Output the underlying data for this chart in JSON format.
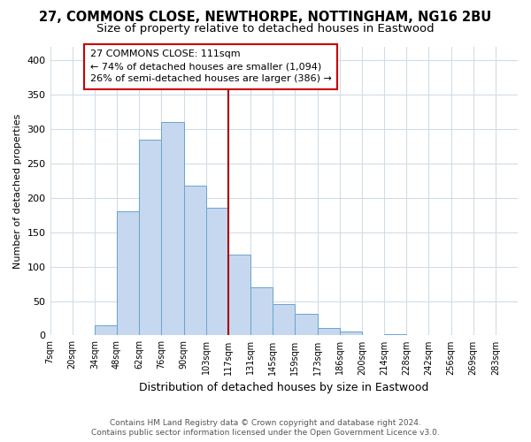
{
  "title": "27, COMMONS CLOSE, NEWTHORPE, NOTTINGHAM, NG16 2BU",
  "subtitle": "Size of property relative to detached houses in Eastwood",
  "xlabel": "Distribution of detached houses by size in Eastwood",
  "ylabel": "Number of detached properties",
  "footer_line1": "Contains HM Land Registry data © Crown copyright and database right 2024.",
  "footer_line2": "Contains public sector information licensed under the Open Government Licence v3.0.",
  "bin_labels": [
    "7sqm",
    "20sqm",
    "34sqm",
    "48sqm",
    "62sqm",
    "76sqm",
    "90sqm",
    "103sqm",
    "117sqm",
    "131sqm",
    "145sqm",
    "159sqm",
    "173sqm",
    "186sqm",
    "200sqm",
    "214sqm",
    "228sqm",
    "242sqm",
    "256sqm",
    "269sqm",
    "283sqm"
  ],
  "bar_values": [
    0,
    0,
    15,
    180,
    285,
    310,
    218,
    185,
    118,
    70,
    45,
    32,
    11,
    6,
    0,
    2,
    0,
    0,
    0,
    0,
    0
  ],
  "bar_color": "#c5d8ef",
  "bar_edge_color": "#6ba3cc",
  "vline_x": 8.0,
  "vline_color": "#aa0000",
  "annotation_text": "27 COMMONS CLOSE: 111sqm\n← 74% of detached houses are smaller (1,094)\n26% of semi-detached houses are larger (386) →",
  "annotation_box_edgecolor": "#cc0000",
  "ylim": [
    0,
    420
  ],
  "yticks": [
    0,
    50,
    100,
    150,
    200,
    250,
    300,
    350,
    400
  ],
  "background_color": "#ffffff",
  "grid_color": "#d0dde8",
  "title_fontsize": 10.5,
  "subtitle_fontsize": 9.5,
  "ylabel_fontsize": 8,
  "xlabel_fontsize": 9
}
